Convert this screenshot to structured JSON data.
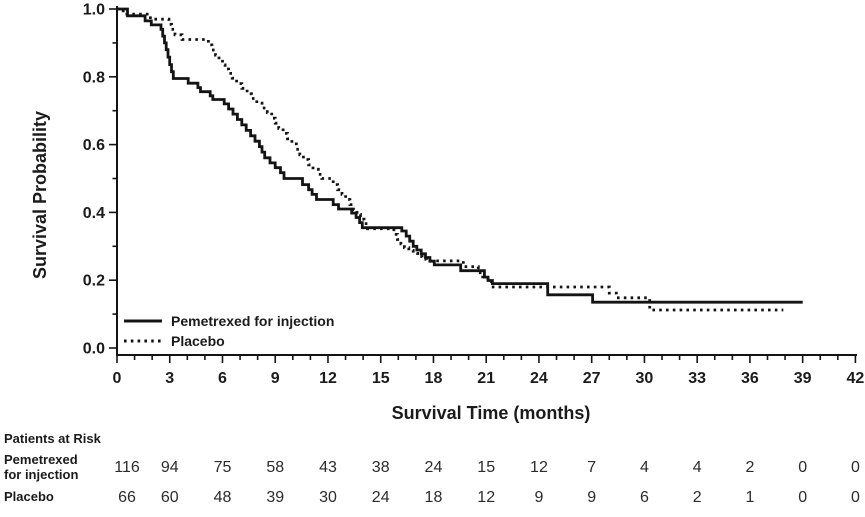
{
  "figure": {
    "background": "#ffffff",
    "line_color": "#141414",
    "text_color": "#1b1b1b"
  },
  "chart_data": {
    "type": "line",
    "subtype": "kaplan-meier-step",
    "title": "",
    "xlabel": "Survival Time (months)",
    "ylabel": "Survival Probability",
    "xlim": [
      0,
      42
    ],
    "ylim": [
      0.0,
      1.0
    ],
    "grid": false,
    "x_major_ticks": [
      0,
      3,
      6,
      9,
      12,
      15,
      18,
      21,
      24,
      27,
      30,
      33,
      36,
      39,
      42
    ],
    "x_minor_step": 1,
    "y_major_ticks": [
      "0.0",
      "0.2",
      "0.4",
      "0.6",
      "0.8",
      "1.0"
    ],
    "y_minor_step": 0.1,
    "legend_position": "inside-bottom-left",
    "series": [
      {
        "name": "Pemetrexed for injection",
        "style": "solid",
        "end_x": 39.0,
        "steps": [
          [
            0,
            1.0
          ],
          [
            0.6,
            0.98
          ],
          [
            1.6,
            0.965
          ],
          [
            1.95,
            0.953
          ],
          [
            2.5,
            0.94
          ],
          [
            2.6,
            0.92
          ],
          [
            2.7,
            0.9
          ],
          [
            2.8,
            0.88
          ],
          [
            2.9,
            0.858
          ],
          [
            3.0,
            0.836
          ],
          [
            3.1,
            0.815
          ],
          [
            3.2,
            0.795
          ],
          [
            4.05,
            0.781
          ],
          [
            4.6,
            0.768
          ],
          [
            4.75,
            0.756
          ],
          [
            5.3,
            0.744
          ],
          [
            5.45,
            0.733
          ],
          [
            6.1,
            0.72
          ],
          [
            6.35,
            0.705
          ],
          [
            6.6,
            0.69
          ],
          [
            6.85,
            0.674
          ],
          [
            7.1,
            0.658
          ],
          [
            7.35,
            0.642
          ],
          [
            7.6,
            0.626
          ],
          [
            7.85,
            0.61
          ],
          [
            8.1,
            0.594
          ],
          [
            8.25,
            0.578
          ],
          [
            8.4,
            0.561
          ],
          [
            8.7,
            0.546
          ],
          [
            9.0,
            0.532
          ],
          [
            9.3,
            0.517
          ],
          [
            9.5,
            0.5
          ],
          [
            10.55,
            0.482
          ],
          [
            10.9,
            0.467
          ],
          [
            11.1,
            0.453
          ],
          [
            11.35,
            0.438
          ],
          [
            12.3,
            0.423
          ],
          [
            12.6,
            0.41
          ],
          [
            13.35,
            0.398
          ],
          [
            13.6,
            0.385
          ],
          [
            13.8,
            0.37
          ],
          [
            13.95,
            0.355
          ],
          [
            16.2,
            0.345
          ],
          [
            16.45,
            0.33
          ],
          [
            16.65,
            0.315
          ],
          [
            16.85,
            0.3
          ],
          [
            17.05,
            0.289
          ],
          [
            17.3,
            0.278
          ],
          [
            17.55,
            0.267
          ],
          [
            17.8,
            0.256
          ],
          [
            18.05,
            0.245
          ],
          [
            19.55,
            0.228
          ],
          [
            20.9,
            0.209
          ],
          [
            21.1,
            0.199
          ],
          [
            21.35,
            0.19
          ],
          [
            24.5,
            0.157
          ],
          [
            27.05,
            0.135
          ]
        ]
      },
      {
        "name": "Placebo",
        "style": "dotted",
        "end_x": 37.9,
        "steps": [
          [
            0,
            1.0
          ],
          [
            0.35,
            0.985
          ],
          [
            1.9,
            0.97
          ],
          [
            2.95,
            0.955
          ],
          [
            3.1,
            0.94
          ],
          [
            3.3,
            0.924
          ],
          [
            3.7,
            0.91
          ],
          [
            5.2,
            0.894
          ],
          [
            5.4,
            0.879
          ],
          [
            5.6,
            0.864
          ],
          [
            5.8,
            0.85
          ],
          [
            6.0,
            0.835
          ],
          [
            6.15,
            0.823
          ],
          [
            6.35,
            0.81
          ],
          [
            6.55,
            0.796
          ],
          [
            6.8,
            0.78
          ],
          [
            7.1,
            0.766
          ],
          [
            7.4,
            0.75
          ],
          [
            7.65,
            0.736
          ],
          [
            7.95,
            0.722
          ],
          [
            8.25,
            0.708
          ],
          [
            8.55,
            0.694
          ],
          [
            8.8,
            0.678
          ],
          [
            9.0,
            0.663
          ],
          [
            9.2,
            0.648
          ],
          [
            9.45,
            0.633
          ],
          [
            9.7,
            0.617
          ],
          [
            9.95,
            0.602
          ],
          [
            10.2,
            0.586
          ],
          [
            10.4,
            0.57
          ],
          [
            10.6,
            0.556
          ],
          [
            10.9,
            0.54
          ],
          [
            11.15,
            0.527
          ],
          [
            11.45,
            0.512
          ],
          [
            11.65,
            0.5
          ],
          [
            12.3,
            0.482
          ],
          [
            12.55,
            0.467
          ],
          [
            12.8,
            0.453
          ],
          [
            13.0,
            0.438
          ],
          [
            13.25,
            0.423
          ],
          [
            13.45,
            0.408
          ],
          [
            13.65,
            0.394
          ],
          [
            13.85,
            0.38
          ],
          [
            14.05,
            0.367
          ],
          [
            14.25,
            0.352
          ],
          [
            15.75,
            0.335
          ],
          [
            15.95,
            0.32
          ],
          [
            16.15,
            0.307
          ],
          [
            16.35,
            0.296
          ],
          [
            16.6,
            0.288
          ],
          [
            16.85,
            0.279
          ],
          [
            17.1,
            0.27
          ],
          [
            17.35,
            0.262
          ],
          [
            17.6,
            0.257
          ],
          [
            19.7,
            0.24
          ],
          [
            20.55,
            0.222
          ],
          [
            20.8,
            0.205
          ],
          [
            21.3,
            0.18
          ],
          [
            28.0,
            0.162
          ],
          [
            28.4,
            0.148
          ],
          [
            30.3,
            0.112
          ]
        ]
      }
    ]
  },
  "at_risk": {
    "heading": "Patients at Risk",
    "time_points": [
      0,
      3,
      6,
      9,
      12,
      15,
      18,
      21,
      24,
      27,
      30,
      33,
      36,
      39,
      42
    ],
    "rows": [
      {
        "label_lines": [
          "Pemetrexed",
          "for injection"
        ],
        "counts": [
          116,
          94,
          75,
          58,
          43,
          38,
          24,
          15,
          12,
          7,
          4,
          4,
          2,
          0,
          0
        ]
      },
      {
        "label_lines": [
          "Placebo"
        ],
        "counts": [
          66,
          60,
          48,
          39,
          30,
          24,
          18,
          12,
          9,
          9,
          6,
          2,
          1,
          0,
          0
        ]
      }
    ]
  }
}
